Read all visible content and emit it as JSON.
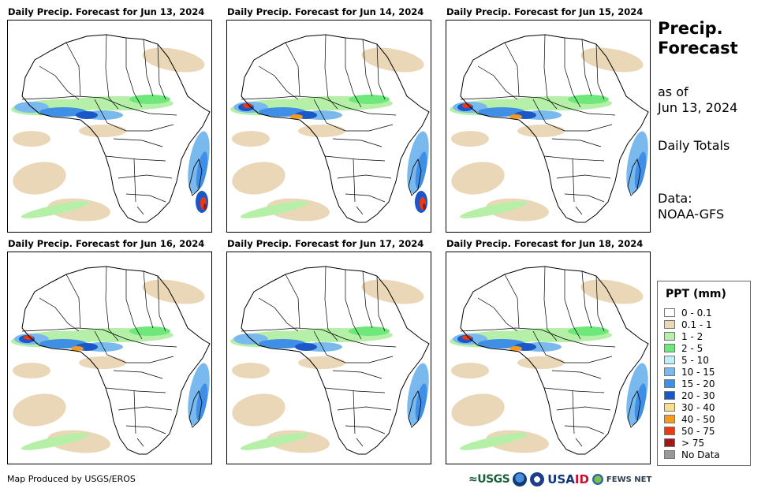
{
  "panels": [
    {
      "title": "Daily Precip. Forecast for Jun 13, 2024"
    },
    {
      "title": "Daily Precip. Forecast for Jun 14, 2024"
    },
    {
      "title": "Daily Precip. Forecast for Jun 15, 2024"
    },
    {
      "title": "Daily Precip. Forecast for Jun 16, 2024"
    },
    {
      "title": "Daily Precip. Forecast for Jun 17, 2024"
    },
    {
      "title": "Daily Precip. Forecast for Jun 18, 2024"
    }
  ],
  "side": {
    "title_line1": "Precip.",
    "title_line2": "Forecast",
    "asof_line1": "as of",
    "asof_line2": "Jun 13, 2024",
    "totals": "Daily Totals",
    "data_line1": "Data:",
    "data_line2": "NOAA-GFS"
  },
  "legend": {
    "title": "PPT (mm)",
    "items": [
      {
        "label": "0 - 0.1",
        "color": "#ffffff"
      },
      {
        "label": "0.1 - 1",
        "color": "#ead7b7"
      },
      {
        "label": "1 - 2",
        "color": "#b6f0a8"
      },
      {
        "label": "2 - 5",
        "color": "#6ee87a"
      },
      {
        "label": "5 - 10",
        "color": "#bff0f7"
      },
      {
        "label": "10 - 15",
        "color": "#79b9ee"
      },
      {
        "label": "15 - 20",
        "color": "#3f8fe6"
      },
      {
        "label": "20 - 30",
        "color": "#1c57c8"
      },
      {
        "label": "30 - 40",
        "color": "#f7df8e"
      },
      {
        "label": "40 - 50",
        "color": "#f39a1f"
      },
      {
        "label": "50 - 75",
        "color": "#ec3a10"
      },
      {
        "label": "> 75",
        "color": "#a01818"
      },
      {
        "label": "No Data",
        "color": "#999999"
      }
    ]
  },
  "footer": {
    "credit": "Map Produced by USGS/EROS",
    "logo_usgs": "≈USGS",
    "logo_usaid_a": "USA",
    "logo_usaid_b": "ID",
    "logo_fews": "FEWS NET"
  }
}
